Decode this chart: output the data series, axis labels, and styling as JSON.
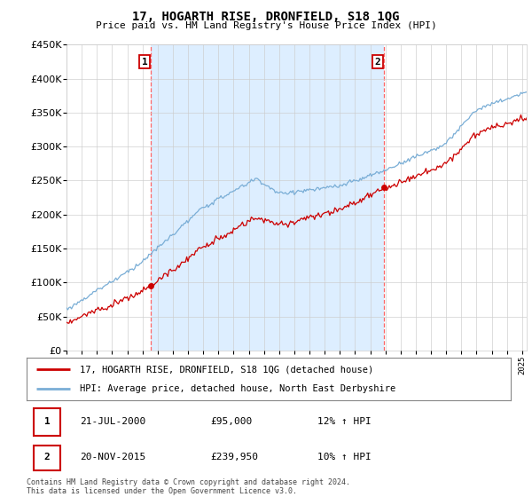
{
  "title": "17, HOGARTH RISE, DRONFIELD, S18 1QG",
  "subtitle": "Price paid vs. HM Land Registry's House Price Index (HPI)",
  "legend_line1": "17, HOGARTH RISE, DRONFIELD, S18 1QG (detached house)",
  "legend_line2": "HPI: Average price, detached house, North East Derbyshire",
  "annotation1_label": "1",
  "annotation1_date": "21-JUL-2000",
  "annotation1_price": "£95,000",
  "annotation1_hpi": "12% ↑ HPI",
  "annotation1_year": 2000.55,
  "annotation1_value": 95000,
  "annotation2_label": "2",
  "annotation2_date": "20-NOV-2015",
  "annotation2_price": "£239,950",
  "annotation2_hpi": "10% ↑ HPI",
  "annotation2_year": 2015.89,
  "annotation2_value": 239950,
  "sale_color": "#cc0000",
  "hpi_color": "#7aaed6",
  "vline_color": "#ff6666",
  "shade_color": "#ddeeff",
  "footer": "Contains HM Land Registry data © Crown copyright and database right 2024.\nThis data is licensed under the Open Government Licence v3.0.",
  "ylim_min": 0,
  "ylim_max": 450000,
  "xlim_min": 1995,
  "xlim_max": 2025.3,
  "background_color": "#ffffff"
}
